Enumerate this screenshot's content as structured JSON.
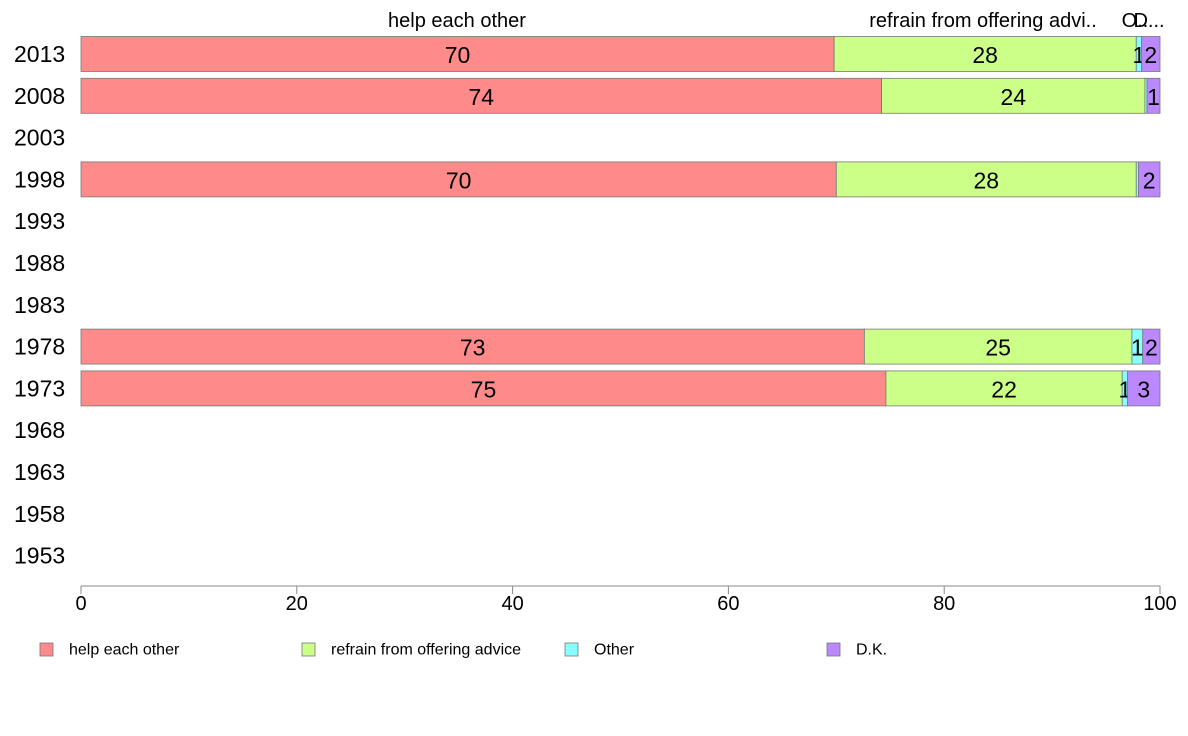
{
  "chart_data": {
    "type": "bar",
    "orientation": "horizontal",
    "stacked": true,
    "categories": [
      "2013",
      "2008",
      "2003",
      "1998",
      "1993",
      "1988",
      "1983",
      "1978",
      "1973",
      "1968",
      "1963",
      "1958",
      "1953"
    ],
    "series": [
      {
        "name": "help each other",
        "color": "#FF8A8A",
        "values": [
          69.8,
          74.2,
          null,
          70.0,
          null,
          null,
          null,
          72.6,
          74.6,
          null,
          null,
          null,
          null
        ],
        "labels": [
          "70",
          "74",
          "",
          "70",
          "",
          "",
          "",
          "73",
          "75",
          "",
          "",
          "",
          ""
        ]
      },
      {
        "name": "refrain from offering advice",
        "color": "#CCFF88",
        "values": [
          28.0,
          24.4,
          null,
          27.8,
          null,
          null,
          null,
          24.8,
          21.9,
          null,
          null,
          null,
          null
        ],
        "labels": [
          "28",
          "24",
          "",
          "28",
          "",
          "",
          "",
          "25",
          "22",
          "",
          "",
          "",
          ""
        ]
      },
      {
        "name": "Other",
        "color": "#88FFFF",
        "values": [
          0.5,
          0.2,
          null,
          0.2,
          null,
          null,
          null,
          1.0,
          0.5,
          null,
          null,
          null,
          null
        ],
        "labels": [
          "1",
          "",
          "",
          "",
          "",
          "",
          "",
          "1",
          "1",
          "",
          "",
          "",
          ""
        ]
      },
      {
        "name": "D.K.",
        "color": "#BB88FF",
        "values": [
          1.7,
          1.2,
          null,
          2.0,
          null,
          null,
          null,
          1.6,
          3.0,
          null,
          null,
          null,
          null
        ],
        "labels": [
          "2",
          "1",
          "",
          "2",
          "",
          "",
          "",
          "2",
          "3",
          "",
          "",
          "",
          ""
        ]
      }
    ],
    "header_labels": [
      "help each other",
      "refrain from offering advi..",
      "O..",
      "D..."
    ],
    "xlim": [
      0,
      100
    ],
    "xticks": [
      "0",
      "20",
      "40",
      "60",
      "80",
      "100"
    ],
    "grid": false,
    "legend_position": "bottom",
    "title": "",
    "xlabel": "",
    "ylabel": ""
  }
}
